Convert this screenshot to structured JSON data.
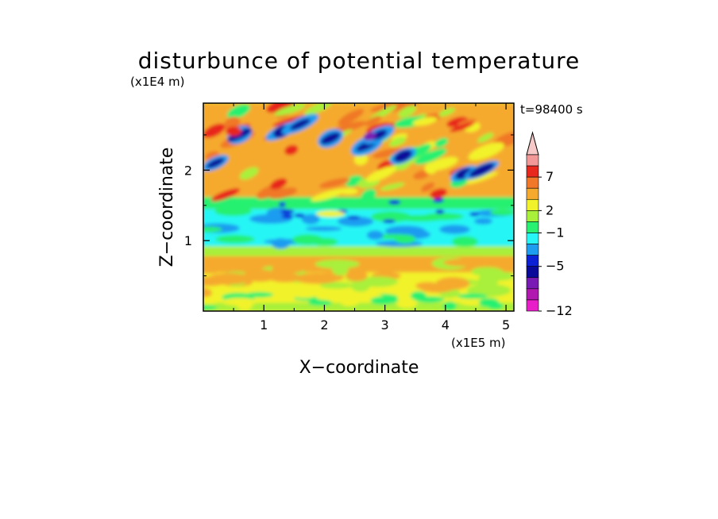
{
  "chart_data": {
    "type": "heatmap",
    "title": "disturbunce of potential temperature",
    "xlabel": "X−coordinate",
    "ylabel": "Z−coordinate",
    "x_unit": "(x1E5 m)",
    "y_unit": "(x1E4 m)",
    "time_label": "t=98400 s",
    "xlim": [
      0,
      5.13
    ],
    "ylim": [
      0,
      2.95
    ],
    "x_ticks": [
      "1",
      "2",
      "3",
      "4",
      "5"
    ],
    "y_ticks": [
      "1",
      "2"
    ],
    "grid": false,
    "legend": "right colorbar",
    "colorbar": {
      "tick_labels": [
        "7",
        "2",
        "−1",
        "−5",
        "−12"
      ],
      "levels_top_to_bottom": [
        {
          "color": "#f6c8c8"
        },
        {
          "color": "#f39898"
        },
        {
          "color": "#e8281c"
        },
        {
          "color": "#f07828"
        },
        {
          "color": "#f5aa2e"
        },
        {
          "color": "#f2f22a"
        },
        {
          "color": "#a8f03a"
        },
        {
          "color": "#28f070"
        },
        {
          "color": "#28f5f5"
        },
        {
          "color": "#1e9cf0"
        },
        {
          "color": "#0c20d6"
        },
        {
          "color": "#0a0a9a"
        },
        {
          "color": "#7a1ab4"
        },
        {
          "color": "#b018b0"
        },
        {
          "color": "#e81ec8"
        }
      ]
    }
  }
}
